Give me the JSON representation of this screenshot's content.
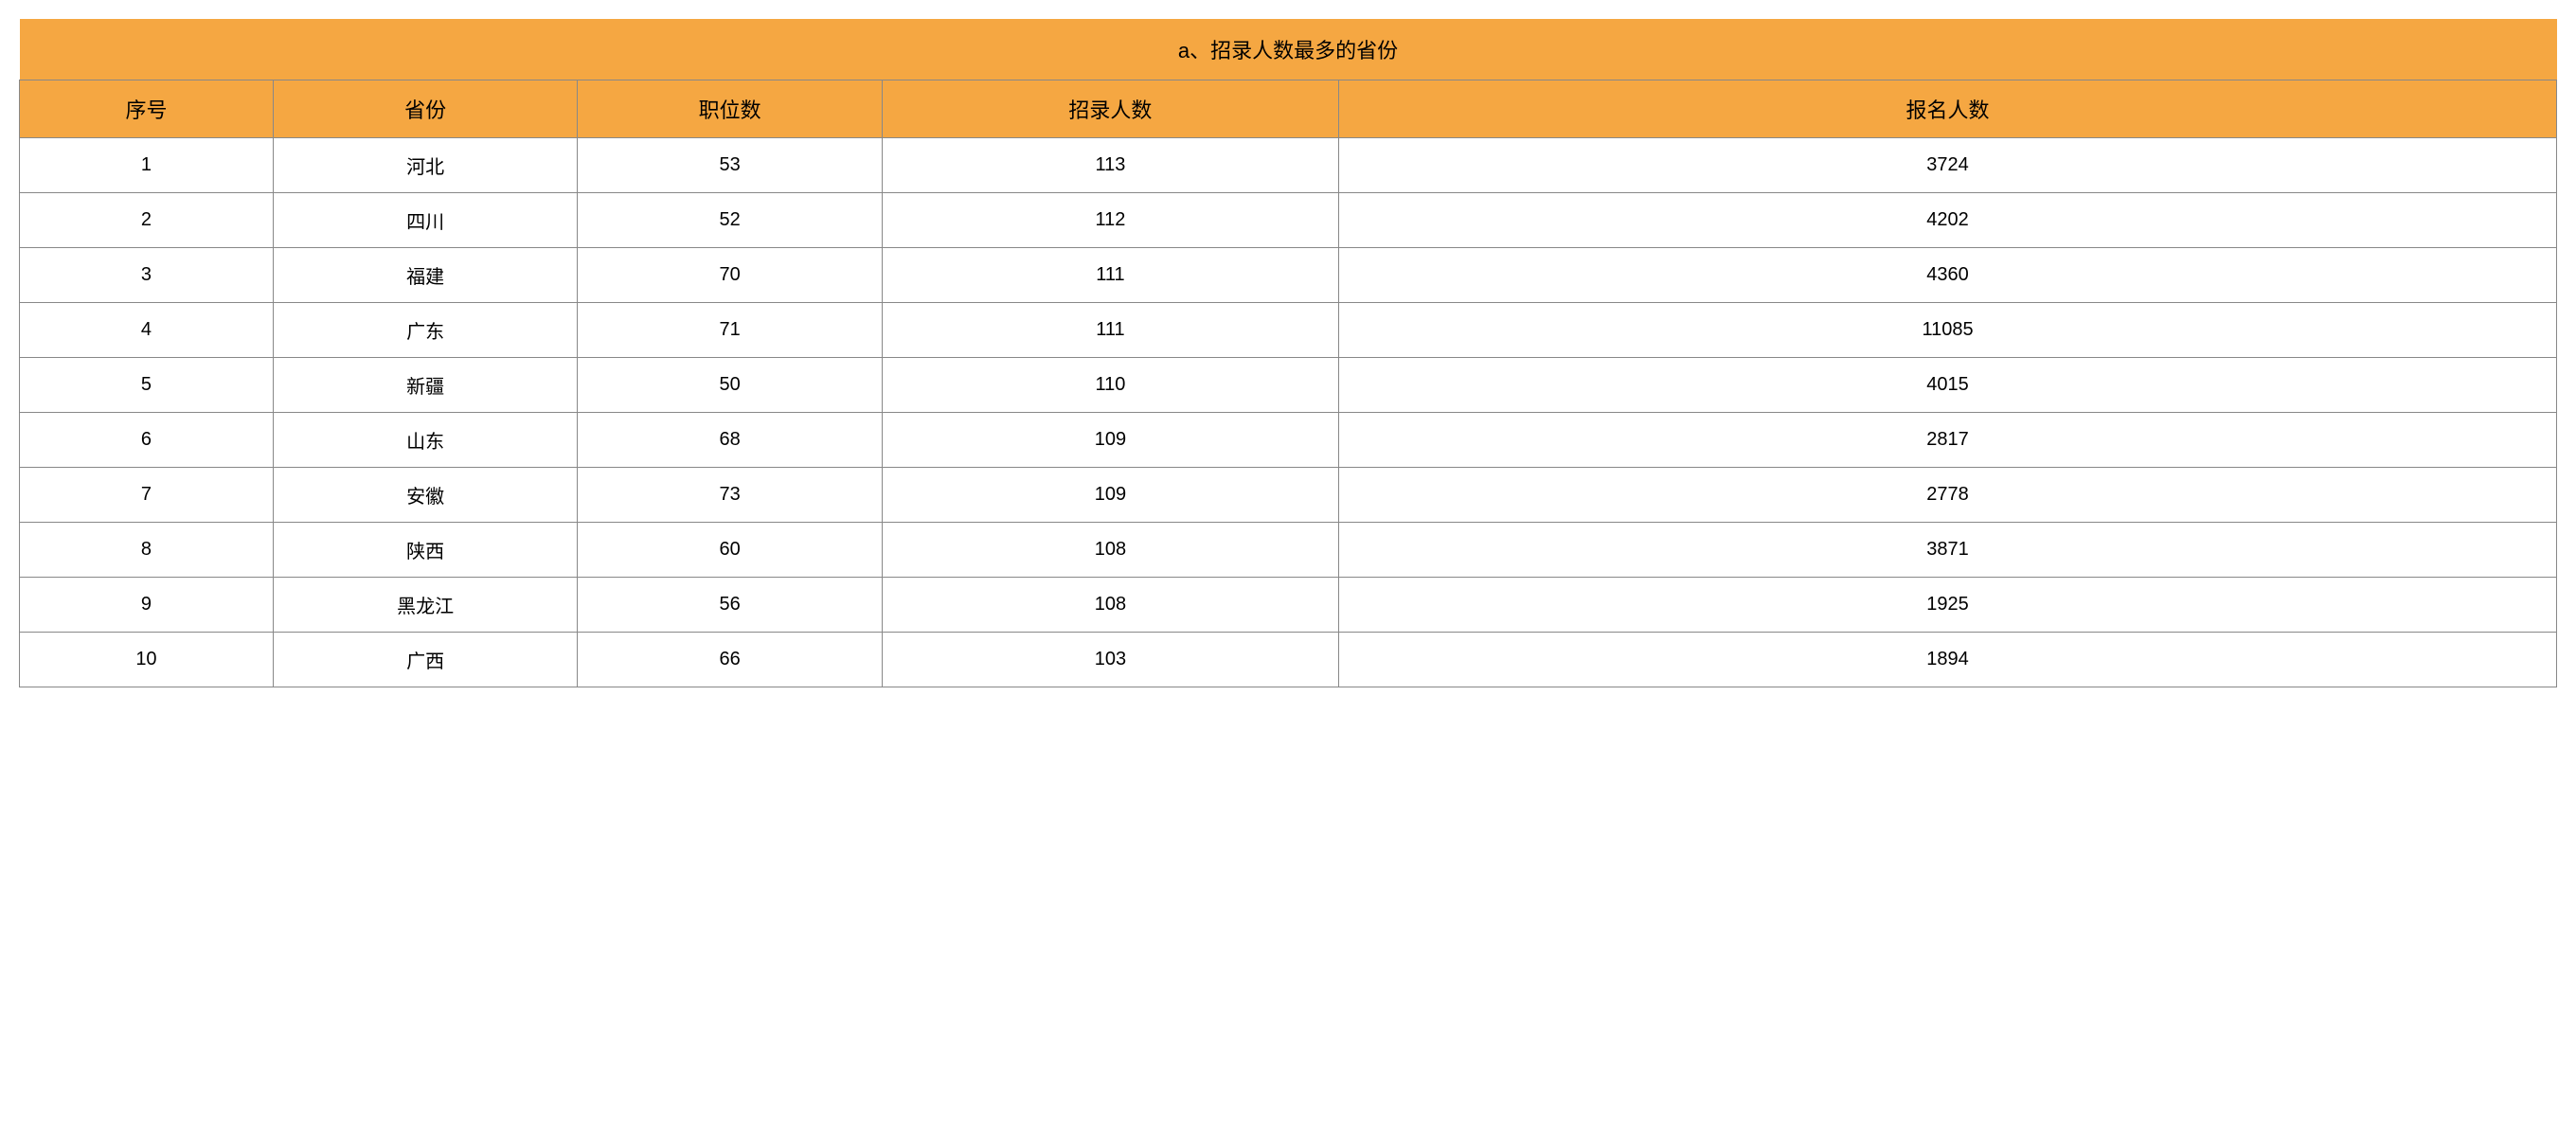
{
  "table": {
    "title": "a、招录人数最多的省份",
    "title_bg_color": "#f5a742",
    "header_bg_color": "#f5a742",
    "row_bg_color": "#ffffff",
    "border_color": "#888888",
    "text_color": "#000000",
    "title_fontsize": 22,
    "header_fontsize": 22,
    "cell_fontsize": 20,
    "columns": [
      {
        "label": "序号",
        "width_pct": 10
      },
      {
        "label": "省份",
        "width_pct": 12
      },
      {
        "label": "职位数",
        "width_pct": 12
      },
      {
        "label": "招录人数",
        "width_pct": 18
      },
      {
        "label": "报名人数",
        "width_pct": 48
      }
    ],
    "rows": [
      [
        "1",
        "河北",
        "53",
        "113",
        "3724"
      ],
      [
        "2",
        "四川",
        "52",
        "112",
        "4202"
      ],
      [
        "3",
        "福建",
        "70",
        "111",
        "4360"
      ],
      [
        "4",
        "广东",
        "71",
        "111",
        "11085"
      ],
      [
        "5",
        "新疆",
        "50",
        "110",
        "4015"
      ],
      [
        "6",
        "山东",
        "68",
        "109",
        "2817"
      ],
      [
        "7",
        "安徽",
        "73",
        "109",
        "2778"
      ],
      [
        "8",
        "陕西",
        "60",
        "108",
        "3871"
      ],
      [
        "9",
        "黑龙江",
        "56",
        "108",
        "1925"
      ],
      [
        "10",
        "广西",
        "66",
        "103",
        "1894"
      ]
    ]
  }
}
